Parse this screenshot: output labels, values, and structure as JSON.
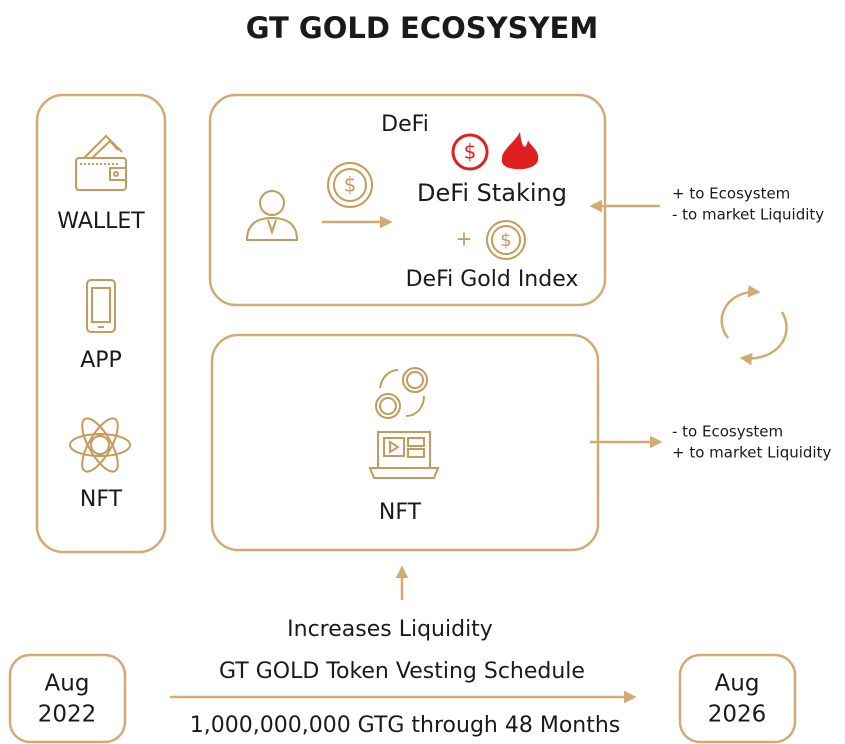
{
  "header": {
    "title": "GT GOLD ECOSYSYEM"
  },
  "sidebar": {
    "items": [
      "WALLET",
      "APP",
      "NFT"
    ]
  },
  "defi": {
    "label": "DeFi",
    "staking": "DeFi Staking",
    "plus": "+",
    "index": "DeFi Gold Index"
  },
  "nft": {
    "label": "NFT"
  },
  "notes": {
    "defi": [
      "+ to Ecosystem",
      "- to market Liquidity"
    ],
    "nft": [
      "- to Ecosystem",
      "+ to market Liquidity"
    ]
  },
  "bottom": {
    "increase": "Increases Liquidity",
    "schedule": "GT GOLD Token Vesting Schedule",
    "amount": "1,000,000,000 GTG through 48 Months"
  },
  "dates": {
    "start": [
      "Aug",
      "2022"
    ],
    "end": [
      "Aug",
      "2026"
    ]
  }
}
